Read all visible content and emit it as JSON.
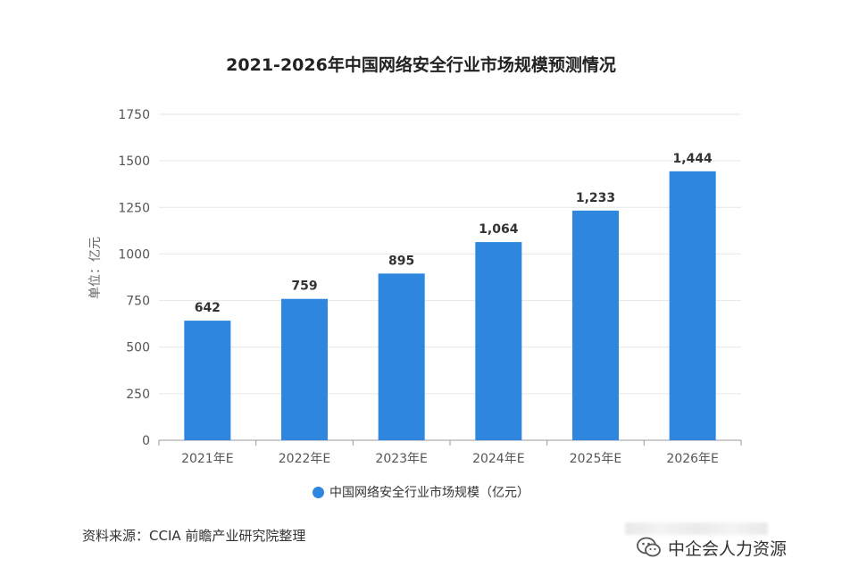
{
  "chart_data": {
    "type": "bar",
    "title": "2021-2026年中国网络安全行业市场规模预测情况",
    "ylabel": "单位：亿元",
    "categories": [
      "2021年E",
      "2022年E",
      "2023年E",
      "2024年E",
      "2025年E",
      "2026年E"
    ],
    "series": [
      {
        "name": "中国网络安全行业市场规模（亿元）",
        "values": [
          642,
          759,
          895,
          1064,
          1233,
          1444
        ],
        "labels": [
          "642",
          "759",
          "895",
          "1,064",
          "1,233",
          "1,444"
        ]
      }
    ],
    "yticks": [
      "0",
      "250",
      "500",
      "750",
      "1000",
      "1250",
      "1500",
      "1750"
    ],
    "ylim": [
      0,
      1750
    ],
    "grid": true,
    "legend_position": "bottom",
    "bar_color": "#2e86de"
  },
  "source": "资料来源：CCIA 前瞻产业研究院整理",
  "footer": {
    "brand": "中企会人力资源"
  }
}
